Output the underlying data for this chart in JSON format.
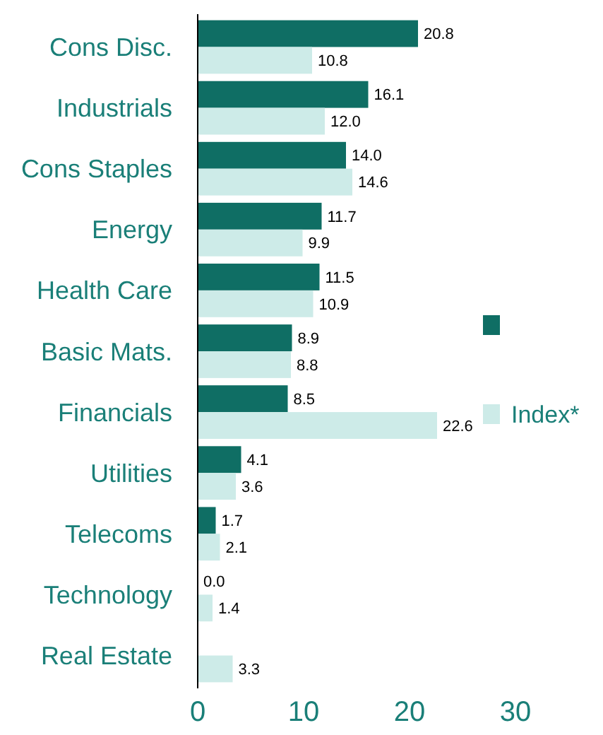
{
  "chart_data": {
    "type": "bar",
    "orientation": "horizontal",
    "categories": [
      "Cons Disc.",
      "Industrials",
      "Cons Staples",
      "Energy",
      "Health Care",
      "Basic Mats.",
      "Financials",
      "Utilities",
      "Telecoms",
      "Technology",
      "Real Estate"
    ],
    "series": [
      {
        "color": "#0f6e64",
        "values": [
          20.8,
          16.1,
          14.0,
          11.7,
          11.5,
          8.9,
          8.5,
          4.1,
          1.7,
          0.0,
          null
        ],
        "value_labels": [
          "20.8",
          "16.1",
          "14.0",
          "11.7",
          "11.5",
          "8.9",
          "8.5",
          "4.1",
          "1.7",
          "0.0",
          null
        ]
      },
      {
        "name": "Index*",
        "color": "#cdebe8",
        "values": [
          10.8,
          12.0,
          14.6,
          9.9,
          10.9,
          8.8,
          22.6,
          3.6,
          2.1,
          1.4,
          3.3
        ],
        "value_labels": [
          "10.8",
          "12.0",
          "14.6",
          "9.9",
          "10.9",
          "8.8",
          "22.6",
          "3.6",
          "2.1",
          "1.4",
          "3.3"
        ]
      }
    ],
    "xlim": [
      0,
      30
    ],
    "xticks": [
      0,
      10,
      20,
      30
    ],
    "legend": "right",
    "grid": false
  }
}
